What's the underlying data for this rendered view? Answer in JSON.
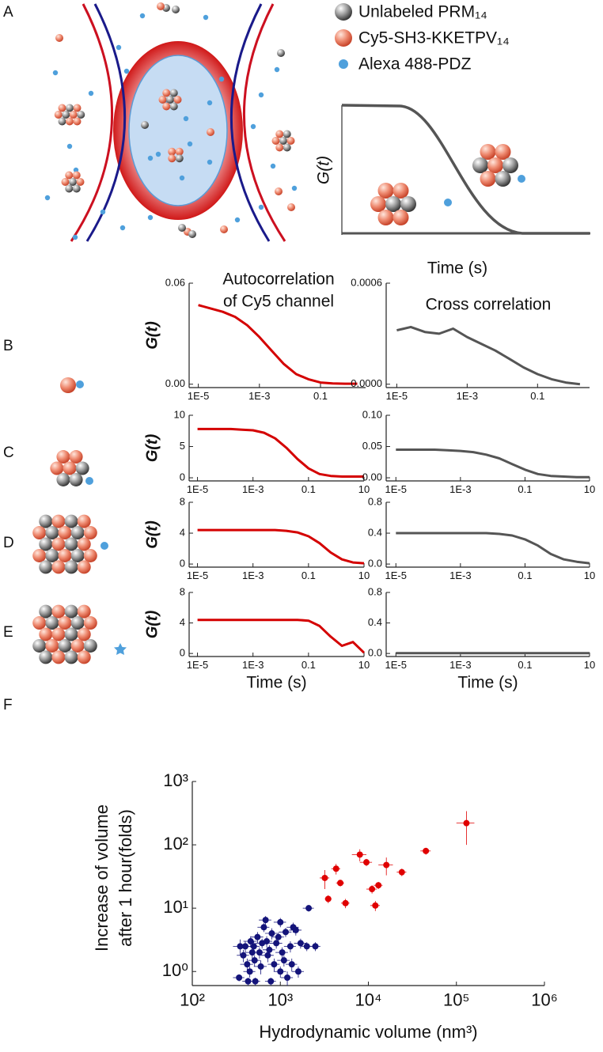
{
  "panel_labels": [
    "A",
    "B",
    "C",
    "D",
    "E",
    "F"
  ],
  "legend": [
    "Unlabeled PRM₁₄",
    "Cy5-SH3-KKETPV₁₄",
    "Alexa 488-PDZ"
  ],
  "schematic": {
    "ylabel": "G(t)",
    "xlabel": "Time (s)"
  },
  "column_titles": {
    "autocorrelation": [
      "Autocorrelation",
      "of Cy5 channel"
    ],
    "cross": "Cross correlation"
  },
  "chart_data": [
    {
      "type": "line",
      "ylabel": "G(t)",
      "color": "#d40000",
      "x": [
        1e-05,
        2.5e-05,
        6.3e-05,
        0.00016,
        0.0004,
        0.001,
        0.0025,
        0.0063,
        0.016,
        0.04,
        0.1,
        0.25,
        0.63,
        1.6
      ],
      "values": [
        0.047,
        0.045,
        0.043,
        0.04,
        0.035,
        0.028,
        0.02,
        0.012,
        0.006,
        0.003,
        0.001,
        0.0005,
        0.0003,
        0.0003
      ],
      "xlim": [
        5e-06,
        3
      ],
      "xticks": [
        {
          "value": 1e-05,
          "label": "1E-5"
        },
        {
          "value": 0.001,
          "label": "1E-3"
        },
        0.1
      ],
      "ylim": [
        -0.002,
        0.06
      ],
      "yticks": [
        {
          "value": 0,
          "label": "0.00"
        },
        0.06
      ],
      "xlog": true
    },
    {
      "type": "line",
      "color": "#555555",
      "x": [
        1e-05,
        2.5e-05,
        6.3e-05,
        0.00016,
        0.0004,
        0.001,
        0.0025,
        0.0063,
        0.016,
        0.04,
        0.1,
        0.25,
        0.63,
        1.6
      ],
      "values": [
        0.00032,
        0.00034,
        0.00031,
        0.0003,
        0.00033,
        0.00028,
        0.00024,
        0.0002,
        0.00015,
        0.0001,
        6e-05,
        3e-05,
        1e-05,
        0
      ],
      "xlim": [
        5e-06,
        3
      ],
      "xticks": [
        {
          "value": 1e-05,
          "label": "1E-5"
        },
        {
          "value": 0.001,
          "label": "1E-3"
        },
        0.1
      ],
      "ylim": [
        -2e-05,
        0.0006
      ],
      "yticks": [
        {
          "value": 0,
          "label": "0.0000"
        },
        0.0006
      ],
      "xlog": true
    },
    {
      "type": "line",
      "ylabel": "G(t)",
      "color": "#d40000",
      "x": [
        1e-05,
        2.5e-05,
        6.3e-05,
        0.00016,
        0.0004,
        0.001,
        0.0025,
        0.0063,
        0.016,
        0.04,
        0.1,
        0.25,
        0.63,
        1.6,
        4,
        10
      ],
      "values": [
        7.8,
        7.8,
        7.8,
        7.8,
        7.7,
        7.6,
        7.2,
        6.3,
        4.8,
        3.0,
        1.5,
        0.6,
        0.3,
        0.2,
        0.2,
        0.2
      ],
      "xlim": [
        5e-06,
        10
      ],
      "xticks": [
        {
          "value": 1e-05,
          "label": "1E-5"
        },
        {
          "value": 0.001,
          "label": "1E-3"
        },
        0.1,
        10
      ],
      "ylim": [
        -0.5,
        10
      ],
      "yticks": [
        0,
        5,
        10
      ],
      "xlog": true
    },
    {
      "type": "line",
      "color": "#555555",
      "x": [
        1e-05,
        2.5e-05,
        6.3e-05,
        0.00016,
        0.0004,
        0.001,
        0.0025,
        0.0063,
        0.016,
        0.04,
        0.1,
        0.25,
        0.63,
        1.6,
        4,
        10
      ],
      "values": [
        0.045,
        0.045,
        0.045,
        0.045,
        0.044,
        0.043,
        0.041,
        0.037,
        0.031,
        0.022,
        0.013,
        0.006,
        0.003,
        0.002,
        0.001,
        0.001
      ],
      "xlim": [
        5e-06,
        10
      ],
      "xticks": [
        {
          "value": 1e-05,
          "label": "1E-5"
        },
        {
          "value": 0.001,
          "label": "1E-3"
        },
        0.1,
        10
      ],
      "ylim": [
        -0.005,
        0.1
      ],
      "yticks": [
        {
          "value": 0,
          "label": "0.00"
        },
        0.05,
        {
          "value": 0.1,
          "label": "0.10"
        }
      ],
      "xlog": true
    },
    {
      "type": "line",
      "ylabel": "G(t)",
      "color": "#d40000",
      "x": [
        1e-05,
        2.5e-05,
        6.3e-05,
        0.00016,
        0.0004,
        0.001,
        0.0025,
        0.0063,
        0.016,
        0.04,
        0.1,
        0.25,
        0.63,
        1.6,
        4,
        10
      ],
      "values": [
        4.4,
        4.4,
        4.4,
        4.4,
        4.4,
        4.4,
        4.4,
        4.4,
        4.3,
        4.1,
        3.6,
        2.7,
        1.5,
        0.6,
        0.2,
        0.1
      ],
      "xlim": [
        5e-06,
        10
      ],
      "xticks": [
        {
          "value": 1e-05,
          "label": "1E-5"
        },
        {
          "value": 0.001,
          "label": "1E-3"
        },
        0.1,
        10
      ],
      "ylim": [
        -0.4,
        8
      ],
      "yticks": [
        0,
        4,
        8
      ],
      "xlog": true
    },
    {
      "type": "line",
      "color": "#555555",
      "x": [
        1e-05,
        2.5e-05,
        6.3e-05,
        0.00016,
        0.0004,
        0.001,
        0.0025,
        0.0063,
        0.016,
        0.04,
        0.1,
        0.25,
        0.63,
        1.6,
        4,
        10
      ],
      "values": [
        0.4,
        0.4,
        0.4,
        0.4,
        0.4,
        0.4,
        0.4,
        0.4,
        0.39,
        0.37,
        0.32,
        0.24,
        0.13,
        0.06,
        0.03,
        0.01
      ],
      "xlim": [
        5e-06,
        10
      ],
      "xticks": [
        {
          "value": 1e-05,
          "label": "1E-5"
        },
        {
          "value": 0.001,
          "label": "1E-3"
        },
        0.1,
        10
      ],
      "ylim": [
        -0.04,
        0.8
      ],
      "yticks": [
        {
          "value": 0,
          "label": "0.0"
        },
        0.4,
        0.8
      ],
      "xlog": true
    },
    {
      "type": "line",
      "ylabel": "G(t)",
      "xlabel": "Time (s)",
      "color": "#d40000",
      "x": [
        1e-05,
        2.5e-05,
        6.3e-05,
        0.00016,
        0.0004,
        0.001,
        0.0025,
        0.0063,
        0.016,
        0.04,
        0.1,
        0.25,
        0.63,
        1.6,
        4,
        10
      ],
      "values": [
        4.4,
        4.4,
        4.4,
        4.4,
        4.4,
        4.4,
        4.4,
        4.4,
        4.4,
        4.4,
        4.3,
        3.6,
        2.2,
        1.0,
        1.5,
        0.1
      ],
      "xlim": [
        5e-06,
        10
      ],
      "xticks": [
        {
          "value": 1e-05,
          "label": "1E-5"
        },
        {
          "value": 0.001,
          "label": "1E-3"
        },
        0.1,
        10
      ],
      "ylim": [
        -0.4,
        8
      ],
      "yticks": [
        0,
        4,
        8
      ],
      "xlog": true
    },
    {
      "type": "line",
      "xlabel": "Time (s)",
      "color": "#555555",
      "x": [
        1e-05,
        2.5e-05,
        6.3e-05,
        0.00016,
        0.0004,
        0.001,
        0.0025,
        0.0063,
        0.016,
        0.04,
        0.1,
        0.25,
        0.63,
        1.6,
        4,
        10
      ],
      "values": [
        0.005,
        0.005,
        0.005,
        0.005,
        0.005,
        0.005,
        0.005,
        0.005,
        0.005,
        0.005,
        0.005,
        0.005,
        0.005,
        0.005,
        0.005,
        0.005
      ],
      "xlim": [
        5e-06,
        10
      ],
      "xticks": [
        {
          "value": 1e-05,
          "label": "1E-5"
        },
        {
          "value": 0.001,
          "label": "1E-3"
        },
        0.1,
        10
      ],
      "ylim": [
        -0.04,
        0.8
      ],
      "yticks": [
        {
          "value": 0,
          "label": "0.0"
        },
        0.4,
        0.8
      ],
      "xlog": true
    },
    {
      "type": "scatter",
      "xlabel": "Hydrodynamic volume (nm³)",
      "ylabel": [
        "Increase of volume",
        "after 1 hour(folds)"
      ],
      "xlog": true,
      "ylog": true,
      "xlim": [
        100,
        1000000
      ],
      "ylim": [
        0.6,
        1000
      ],
      "xticks": [
        {
          "value": 100,
          "label": "10²"
        },
        {
          "value": 1000,
          "label": "10³"
        },
        {
          "value": 10000,
          "label": "10⁴"
        },
        {
          "value": 100000,
          "label": "10⁵"
        },
        {
          "value": 1000000,
          "label": "10⁶"
        }
      ],
      "yticks": [
        {
          "value": 1,
          "label": "10⁰"
        },
        {
          "value": 10,
          "label": "10¹"
        },
        {
          "value": 100,
          "label": "10²"
        },
        {
          "value": 1000,
          "label": "10³"
        }
      ],
      "series": [
        {
          "color": "#14147a",
          "x": [
            340,
            350,
            380,
            400,
            420,
            430,
            450,
            460,
            480,
            500,
            510,
            520,
            550,
            580,
            600,
            620,
            650,
            680,
            700,
            720,
            750,
            780,
            800,
            850,
            900,
            950,
            1000,
            1000,
            1050,
            1100,
            1150,
            1200,
            1300,
            1350,
            1400,
            1500,
            1600,
            1700,
            2000,
            2500,
            2100
          ],
          "values": [
            0.8,
            2.5,
            1.8,
            2.5,
            1.3,
            0.7,
            1.0,
            3.0,
            2.0,
            2.5,
            1.5,
            0.7,
            3.5,
            2.0,
            1.2,
            2.8,
            5.0,
            6.5,
            3.0,
            1.8,
            2.2,
            0.7,
            4.0,
            1.3,
            2.8,
            3.5,
            1.0,
            6.0,
            2.0,
            1.5,
            4.2,
            0.8,
            2.5,
            1.3,
            5.0,
            4.5,
            1.0,
            2.8,
            2.5,
            2.5,
            10
          ],
          "xerr": [
            50,
            60,
            60,
            70,
            70,
            60,
            70,
            80,
            80,
            80,
            80,
            70,
            90,
            90,
            100,
            100,
            100,
            110,
            110,
            120,
            120,
            110,
            130,
            130,
            150,
            150,
            160,
            160,
            170,
            180,
            190,
            190,
            200,
            200,
            220,
            240,
            250,
            270,
            300,
            350,
            300
          ],
          "yerr": [
            0.1,
            0.7,
            0.4,
            0.5,
            0.3,
            0.1,
            0.2,
            0.6,
            0.4,
            0.5,
            0.3,
            0.1,
            0.7,
            0.4,
            0.3,
            0.5,
            0.8,
            1.0,
            0.6,
            0.4,
            0.4,
            0.1,
            0.8,
            0.3,
            0.5,
            0.6,
            0.2,
            1.0,
            0.4,
            0.3,
            0.7,
            0.2,
            0.5,
            0.3,
            0.9,
            0.8,
            0.2,
            0.5,
            0.4,
            0.4,
            1.2
          ]
        },
        {
          "color": "#e00000",
          "x": [
            3200,
            3500,
            4300,
            4800,
            5500,
            8000,
            9500,
            11000,
            12000,
            13000,
            16000,
            24000,
            45000,
            130000
          ],
          "values": [
            30,
            14,
            42,
            25,
            12,
            70,
            53,
            20,
            11,
            23,
            48,
            37,
            80,
            220
          ],
          "xerr": [
            400,
            300,
            500,
            500,
            600,
            1500,
            1500,
            1500,
            1500,
            1500,
            3000,
            3000,
            6000,
            30000
          ],
          "yerr": [
            10,
            2,
            8,
            3,
            2,
            15,
            7,
            3,
            2,
            3,
            15,
            5,
            10,
            120
          ]
        }
      ]
    }
  ]
}
